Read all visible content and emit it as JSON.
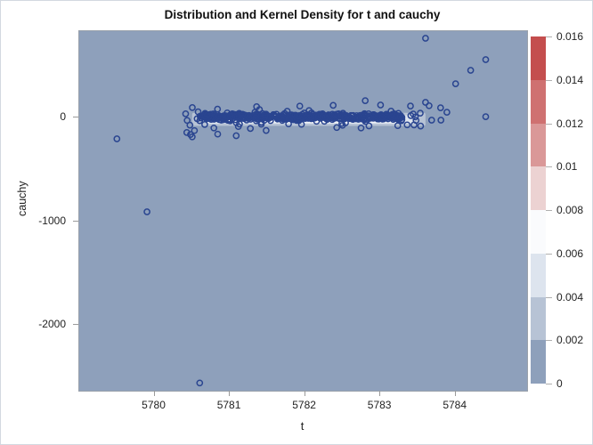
{
  "figure": {
    "title": "Distribution and Kernel Density for t and cauchy"
  },
  "chart_data": {
    "type": "scatter",
    "subtype": "scatter over kernel-density heatmap",
    "title": "Distribution and Kernel Density for t and cauchy",
    "xlabel": "t",
    "ylabel": "cauchy",
    "x_ticks": [
      5780,
      5781,
      5782,
      5783,
      5784
    ],
    "y_ticks": [
      0,
      -1000,
      -2000
    ],
    "xlim": [
      5779.0,
      5784.95
    ],
    "ylim": [
      -2635,
      833
    ],
    "grid": false,
    "plot_bg_color": "#8EA0BB",
    "marker": {
      "shape": "open-circle",
      "color": "#2A4590",
      "radius_px": 3.1,
      "stroke_px": 1.5
    },
    "legend": {
      "position": "right",
      "tick_labels": [
        "0.016",
        "0.014",
        "0.012",
        "0.01",
        "0.008",
        "0.006",
        "0.004",
        "0.002",
        "0"
      ],
      "band_colors_top_to_bottom": [
        "#C44E4E",
        "#CF7171",
        "#DA9898",
        "#ECD2D2",
        "#FAFBFD",
        "#DDE4EE",
        "#B7C3D5",
        "#8EA0BB"
      ],
      "value_min": 0,
      "value_max": 0.016
    },
    "density_ridge": {
      "description": "thin high-density kernel band visible near cauchy=0",
      "layers": [
        {
          "color": "#B7C3D5",
          "x_min": 5780.5,
          "x_max": 5783.6,
          "y_min": -80,
          "y_max": 45
        },
        {
          "color": "#DDE4EE",
          "x_min": 5780.7,
          "x_max": 5783.45,
          "y_min": -60,
          "y_max": 22
        },
        {
          "color": "#FAFBFD",
          "x_min": 5780.95,
          "x_max": 5783.3,
          "y_min": -48,
          "y_max": -4
        }
      ]
    },
    "cluster": {
      "description": "dense horizontal band of open-circle markers near cauchy=0",
      "core": {
        "x_min": 5780.6,
        "x_max": 5783.3,
        "y_mean": 5,
        "y_sd": 14,
        "count": 460
      },
      "fringe": {
        "x_min": 5780.4,
        "x_max": 5783.9,
        "y_mean": 0,
        "y_sd": 55,
        "count": 90
      },
      "lower_left_fringe": {
        "x_min": 5780.4,
        "x_max": 5781.7,
        "y_min": -200,
        "y_max": -60,
        "count": 10
      }
    },
    "outlier_points": [
      [
        5779.5,
        -206
      ],
      [
        5779.9,
        -910
      ],
      [
        5780.6,
        -2560
      ],
      [
        5783.6,
        764
      ],
      [
        5784.4,
        558
      ],
      [
        5784.2,
        455
      ],
      [
        5784.0,
        326
      ],
      [
        5784.4,
        8
      ],
      [
        5783.8,
        94
      ],
      [
        5782.8,
        163
      ],
      [
        5783.6,
        146
      ],
      [
        5783.4,
        111
      ]
    ]
  }
}
